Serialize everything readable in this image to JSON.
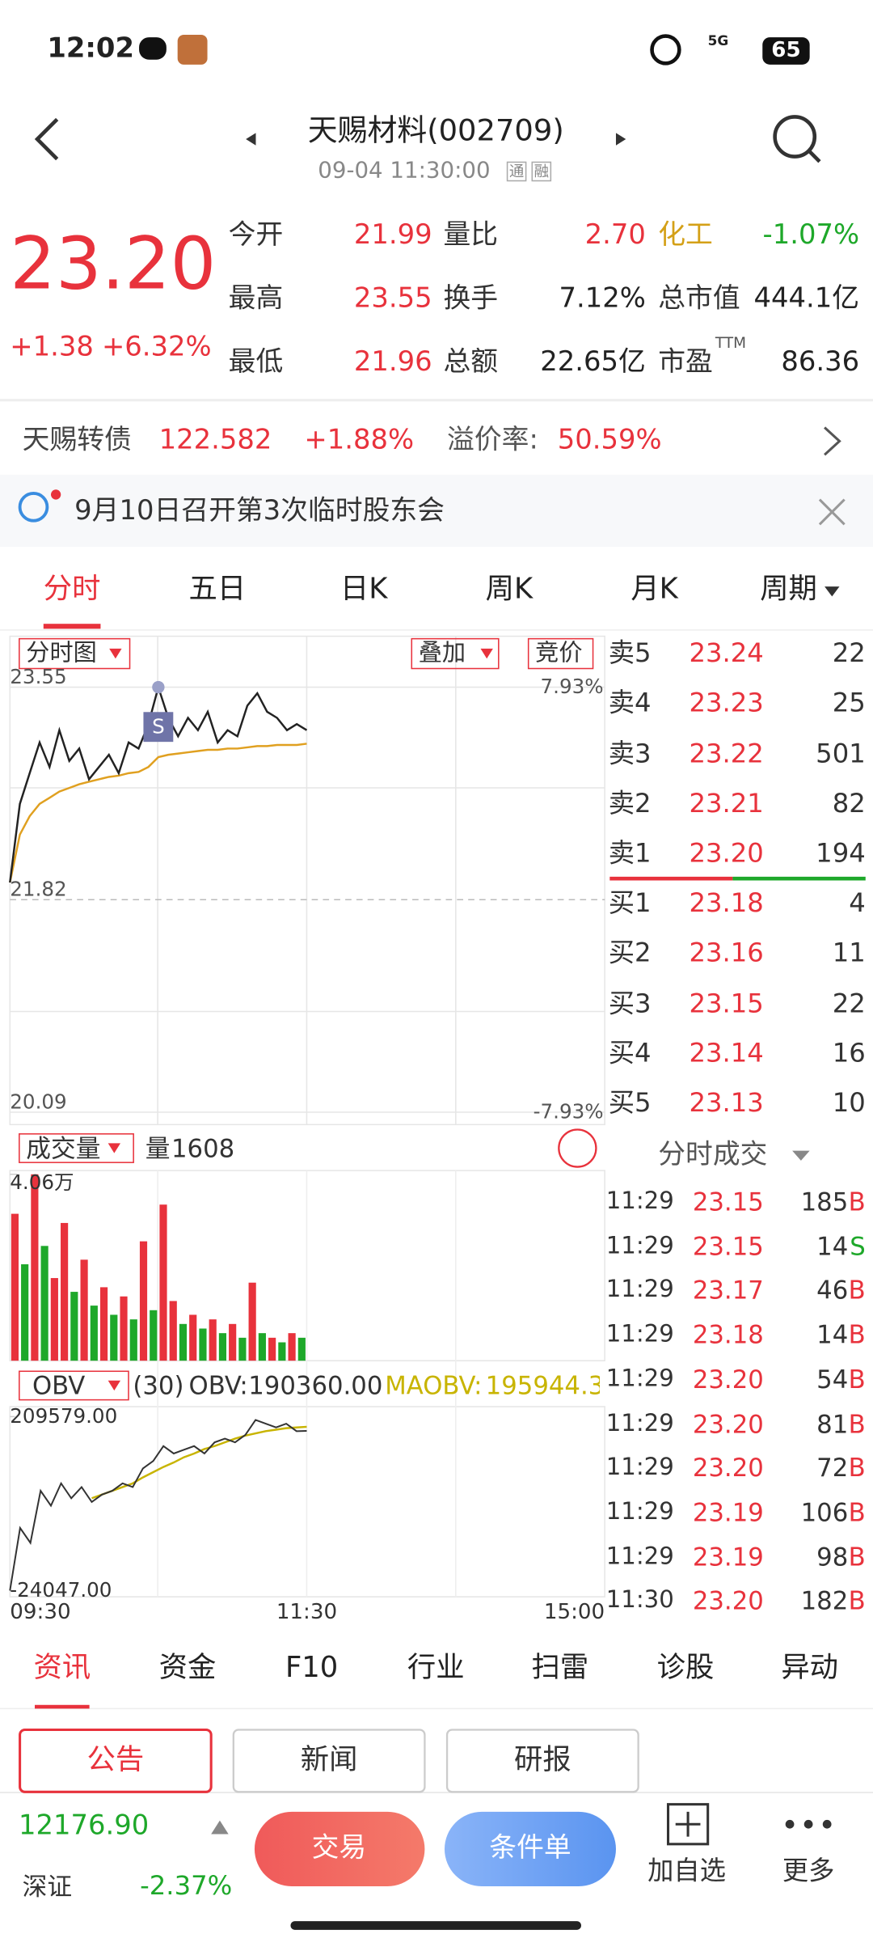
{
  "status_bar": {
    "time": "12:02",
    "network": "5G",
    "battery": "65"
  },
  "header": {
    "title": "天赐材料(002709)",
    "datetime": "09-04 11:30:00",
    "badges": [
      "通",
      "融"
    ]
  },
  "quote": {
    "price": "23.20",
    "change": "+1.38",
    "change_pct": "+6.32%",
    "stats": [
      [
        {
          "label": "今开",
          "value": "21.99"
        },
        {
          "label": "量比",
          "value": "2.70"
        },
        {
          "label": "化工",
          "value": "-1.07%"
        }
      ],
      [
        {
          "label": "最高",
          "value": "23.55"
        },
        {
          "label": "换手",
          "value": "7.12%"
        },
        {
          "label": "总市值",
          "value": "444.1亿"
        }
      ],
      [
        {
          "label": "最低",
          "value": "21.96"
        },
        {
          "label": "总额",
          "value": "22.65亿"
        },
        {
          "label": "市盈",
          "sup": "TTM",
          "value": "86.36"
        }
      ]
    ]
  },
  "bond": {
    "name": "天赐转债",
    "price": "122.582",
    "change": "+1.88%",
    "premium_label": "溢价率:",
    "premium": "50.59%"
  },
  "notice": "9月10日召开第3次临时股东会",
  "period_tabs": [
    "分时",
    "五日",
    "日K",
    "周K",
    "月K",
    "周期"
  ],
  "price_chart": {
    "controls": [
      "分时图",
      "叠加",
      "竞价"
    ],
    "ylim": [
      20.09,
      23.55
    ],
    "yticks": [
      20.09,
      21.82,
      23.55
    ],
    "pct_labels": [
      "7.93%",
      "-7.93%"
    ],
    "price": [
      21.96,
      22.6,
      22.85,
      23.1,
      22.9,
      23.2,
      22.95,
      23.05,
      22.8,
      22.9,
      23.0,
      22.85,
      23.1,
      23.05,
      23.25,
      23.55,
      23.3,
      23.15,
      23.3,
      23.2,
      23.35,
      23.1,
      23.2,
      23.15,
      23.4,
      23.5,
      23.35,
      23.3,
      23.2,
      23.25,
      23.2
    ],
    "avg": [
      21.96,
      22.35,
      22.5,
      22.6,
      22.65,
      22.7,
      22.73,
      22.76,
      22.78,
      22.8,
      22.82,
      22.83,
      22.85,
      22.86,
      22.9,
      22.98,
      23.0,
      23.01,
      23.02,
      23.03,
      23.04,
      23.04,
      23.05,
      23.05,
      23.06,
      23.07,
      23.07,
      23.08,
      23.08,
      23.08,
      23.09
    ],
    "price_color": "#222222",
    "avg_color": "#e0a020",
    "marker": "S",
    "xticks": [
      "09:30",
      "11:30",
      "15:00"
    ]
  },
  "order_book": {
    "asks": [
      {
        "label": "卖5",
        "price": "23.24",
        "volume": 22
      },
      {
        "label": "卖4",
        "price": "23.23",
        "volume": 25
      },
      {
        "label": "卖3",
        "price": "23.22",
        "volume": 501
      },
      {
        "label": "卖2",
        "price": "23.21",
        "volume": 82
      },
      {
        "label": "卖1",
        "price": "23.20",
        "volume": 194
      }
    ],
    "bids": [
      {
        "label": "买1",
        "price": "23.18",
        "volume": 4
      },
      {
        "label": "买2",
        "price": "23.16",
        "volume": 11
      },
      {
        "label": "买3",
        "price": "23.15",
        "volume": 22
      },
      {
        "label": "买4",
        "price": "23.14",
        "volume": 16
      },
      {
        "label": "买5",
        "price": "23.13",
        "volume": 10
      }
    ]
  },
  "volume_chart": {
    "label": "成交量",
    "current_label": "量",
    "current": 1608,
    "ylim": [
      0,
      4.06
    ],
    "yticks": [
      {
        "value": 4.06,
        "label": "4.06万"
      }
    ],
    "values": [
      3.2,
      2.1,
      4.06,
      2.5,
      1.8,
      3.0,
      1.5,
      2.2,
      1.2,
      1.6,
      1.0,
      1.4,
      0.9,
      2.6,
      1.1,
      3.4,
      1.3,
      0.8,
      1.0,
      0.7,
      0.9,
      0.6,
      0.8,
      0.5,
      1.7,
      0.6,
      0.5,
      0.4,
      0.6,
      0.5
    ],
    "colors": [
      "#e8323c",
      "#1ea82a",
      "#e8323c",
      "#1ea82a",
      "#e8323c",
      "#e8323c",
      "#1ea82a",
      "#e8323c",
      "#1ea82a",
      "#e8323c",
      "#1ea82a",
      "#e8323c",
      "#1ea82a",
      "#e8323c",
      "#1ea82a",
      "#e8323c",
      "#e8323c",
      "#1ea82a",
      "#e8323c",
      "#1ea82a",
      "#e8323c",
      "#1ea82a",
      "#e8323c",
      "#1ea82a",
      "#e8323c",
      "#1ea82a",
      "#e8323c",
      "#1ea82a",
      "#e8323c",
      "#1ea82a"
    ]
  },
  "obv_chart": {
    "label": "OBV",
    "period": "(30)",
    "obv_label": "OBV:",
    "obv": "190360.00",
    "maobv_label": "MAOBV:",
    "maobv": "195944.3",
    "ylim": [
      -24047,
      209579
    ],
    "yticks": [
      {
        "value": -24047,
        "label": "-24047.00"
      },
      {
        "value": 209579,
        "label": "209579.00"
      }
    ],
    "obv_values": [
      -24047,
      60000,
      40000,
      110000,
      90000,
      120000,
      100000,
      115000,
      95000,
      105000,
      110000,
      120000,
      115000,
      140000,
      150000,
      170000,
      160000,
      165000,
      170000,
      160000,
      175000,
      180000,
      175000,
      185000,
      205000,
      200000,
      195000,
      200000,
      190000,
      190360
    ],
    "maobv_values": [
      null,
      null,
      null,
      null,
      null,
      null,
      null,
      null,
      100000,
      105000,
      110000,
      115000,
      120000,
      128000,
      135000,
      142000,
      148000,
      155000,
      160000,
      166000,
      170000,
      175000,
      180000,
      184000,
      187000,
      190000,
      192000,
      194000,
      195000,
      195944.3
    ],
    "obv_color": "#333333",
    "maobv_color": "#c8b400"
  },
  "trades": {
    "title": "分时成交",
    "rows": [
      {
        "time": "11:29",
        "price": "23.15",
        "volume": 185,
        "side": "B"
      },
      {
        "time": "11:29",
        "price": "23.15",
        "volume": 14,
        "side": "S"
      },
      {
        "time": "11:29",
        "price": "23.17",
        "volume": 46,
        "side": "B"
      },
      {
        "time": "11:29",
        "price": "23.18",
        "volume": 14,
        "side": "B"
      },
      {
        "time": "11:29",
        "price": "23.20",
        "volume": 54,
        "side": "B"
      },
      {
        "time": "11:29",
        "price": "23.20",
        "volume": 81,
        "side": "B"
      },
      {
        "time": "11:29",
        "price": "23.20",
        "volume": 72,
        "side": "B"
      },
      {
        "time": "11:29",
        "price": "23.19",
        "volume": 106,
        "side": "B"
      },
      {
        "time": "11:29",
        "price": "23.19",
        "volume": 98,
        "side": "B"
      },
      {
        "time": "11:30",
        "price": "23.20",
        "volume": 182,
        "side": "B"
      }
    ]
  },
  "info_tabs": [
    "资讯",
    "资金",
    "F10",
    "行业",
    "扫雷",
    "诊股",
    "异动"
  ],
  "info_subtabs": [
    "公告",
    "新闻",
    "研报"
  ],
  "footer": {
    "index_value": "12176.90",
    "index_name": "深证",
    "index_pct": "-2.37%",
    "trade": "交易",
    "condition_order": "条件单",
    "add_watch": "加自选",
    "more": "更多"
  }
}
